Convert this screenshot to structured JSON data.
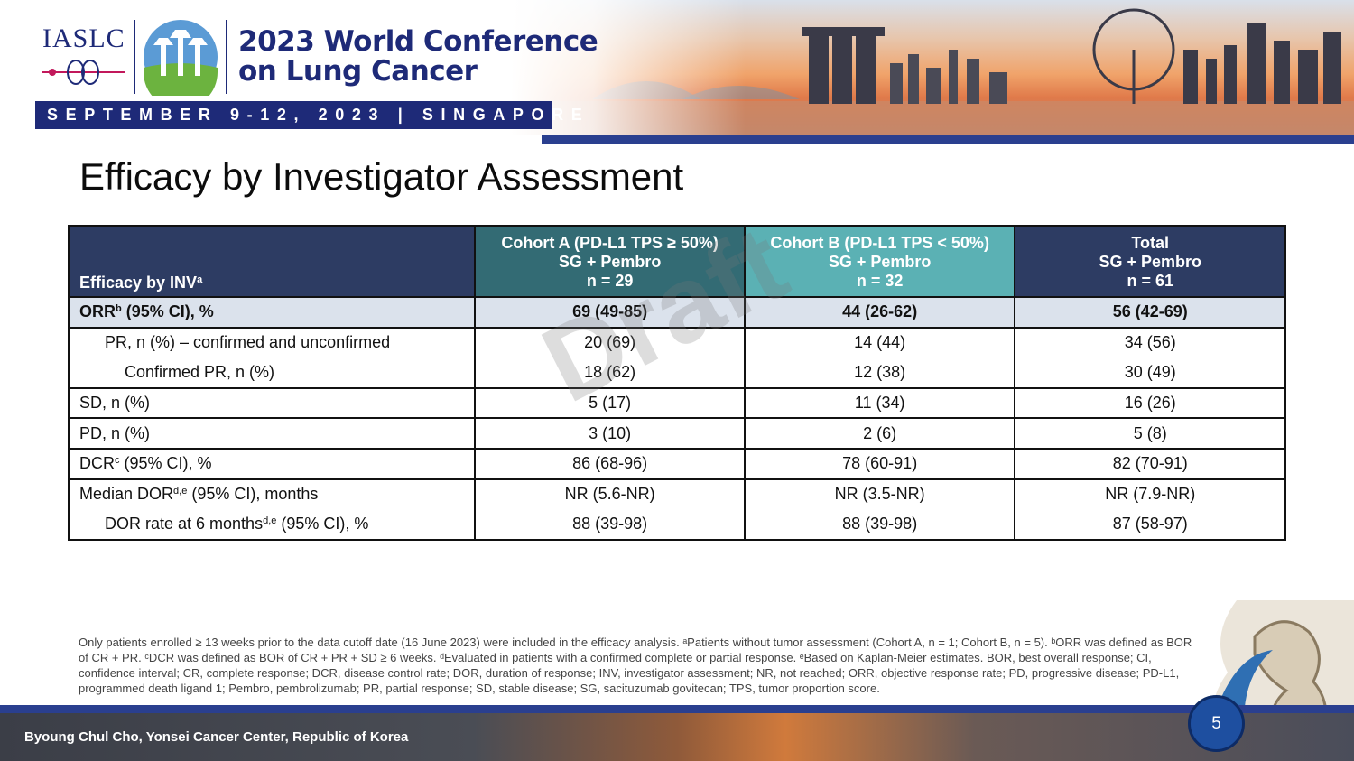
{
  "header": {
    "org": "IASLC",
    "conference_line1": "2023 World Conference",
    "conference_line2": "on Lung Cancer",
    "date_location": "SEPTEMBER 9-12, 2023 | SINGAPORE"
  },
  "slide": {
    "title": "Efficacy by Investigator Assessment",
    "watermark": "Draft"
  },
  "table": {
    "header": {
      "label": "Efficacy by INV",
      "label_sup": "a",
      "cohort_a": [
        "Cohort A (PD-L1 TPS ≥ 50%)",
        "SG + Pembro",
        "n = 29"
      ],
      "cohort_b": [
        "Cohort B (PD-L1 TPS < 50%)",
        "SG + Pembro",
        "n = 32"
      ],
      "total": [
        "Total",
        "SG + Pembro",
        "n = 61"
      ]
    },
    "rows": [
      {
        "label": "ORR",
        "sup": "b",
        "suffix": " (95% CI), %",
        "a": "69 (49-85)",
        "b": "44 (26-62)",
        "t": "56 (42-69)"
      },
      {
        "label": "PR, n (%) – confirmed and unconfirmed",
        "a": "20 (69)",
        "b": "14 (44)",
        "t": "34 (56)"
      },
      {
        "label": "Confirmed PR, n (%)",
        "a": "18 (62)",
        "b": "12 (38)",
        "t": "30 (49)"
      },
      {
        "label": "SD, n (%)",
        "a": "5 (17)",
        "b": "11 (34)",
        "t": "16 (26)"
      },
      {
        "label": "PD, n (%)",
        "a": "3 (10)",
        "b": "2 (6)",
        "t": "5 (8)"
      },
      {
        "label": "DCR",
        "sup": "c",
        "suffix": " (95% CI), %",
        "a": "86 (68-96)",
        "b": "78 (60-91)",
        "t": "82 (70-91)"
      },
      {
        "label": "Median DOR",
        "sup": "d,e",
        "suffix": " (95% CI), months",
        "a": "NR (5.6-NR)",
        "b": "NR (3.5-NR)",
        "t": "NR (7.9-NR)"
      },
      {
        "label": "DOR rate at 6 months",
        "sup": "d,e",
        "suffix": " (95% CI), %",
        "a": "88 (39-98)",
        "b": "88 (39-98)",
        "t": "87 (58-97)"
      }
    ]
  },
  "footnote": "Only patients enrolled ≥ 13 weeks prior to the data cutoff date (16 June 2023) were included in the efficacy analysis. ᵃPatients without tumor assessment (Cohort A, n = 1; Cohort B, n = 5). ᵇORR was defined as BOR of CR + PR. ᶜDCR was defined as BOR of CR + PR + SD ≥ 6 weeks. ᵈEvaluated in patients with a confirmed complete or partial response. ᵉBased on Kaplan-Meier estimates. BOR, best overall response; CI, confidence interval; CR, complete response; DCR, disease control rate; DOR, duration of response; INV, investigator assessment; NR, not reached; ORR, objective response rate; PD, progressive disease; PD-L1, programmed death ligand 1; Pembro, pembrolizumab; PR, partial response; SD, stable disease; SG, sacituzumab govitecan; TPS, tumor proportion score.",
  "footer": {
    "presenter": "Byoung Chul Cho, Yonsei Cancer Center, Republic of Korea",
    "page_number": "5"
  },
  "colors": {
    "navy": "#1e2a78",
    "header_dark": "#2d3c63",
    "cohort_a": "#336b74",
    "cohort_b": "#5bb1b4",
    "orr_row": "#dbe2ec"
  },
  "icons": [
    "lungs-icon",
    "supertree-logo",
    "merlion-icon"
  ]
}
